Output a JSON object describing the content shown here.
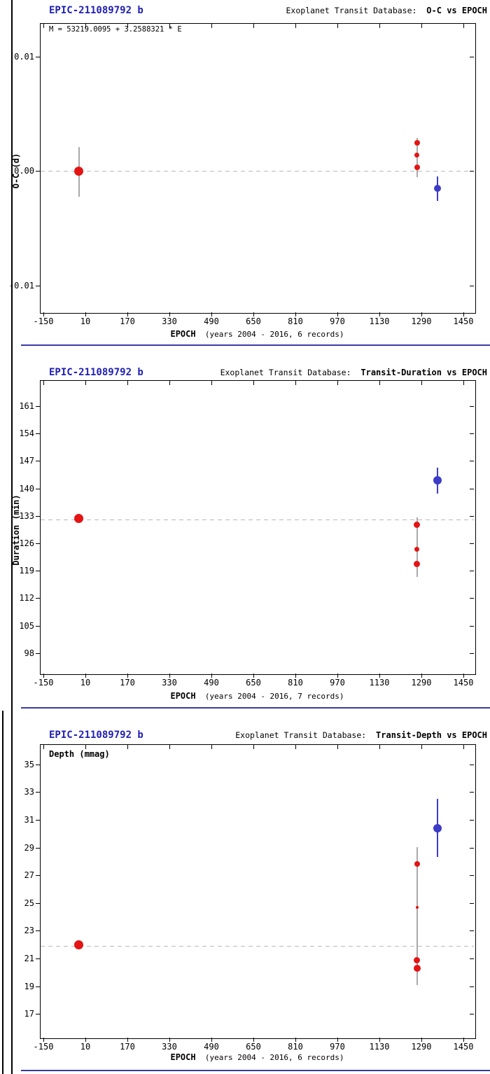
{
  "colors": {
    "red": "#e41414",
    "blue": "#3c3cc8",
    "gray": "#a9a9a9",
    "dashed": "#b9b9b9",
    "separator": "#3939a8",
    "title_blue": "#2020b2",
    "axis": "#000000"
  },
  "chart_data": [
    {
      "type": "scatter",
      "title": "EPIC-211089792 b",
      "header_prefix": "Exoplanet Transit Database:  ",
      "header_bold": "O-C vs EPOCH",
      "legend": "M = 53219.0095 + 3.2588321 * E",
      "ylabel": "O-C (d)",
      "xlabel": "EPOCH",
      "xlabel_note": "(years 2004 - 2016, 6 records)",
      "x_ticks": [
        -150,
        10,
        170,
        330,
        490,
        650,
        810,
        970,
        1130,
        1290,
        1450
      ],
      "y_ticks": [
        {
          "v": 0.01,
          "label": "0.01"
        },
        {
          "v": 0.0,
          "label": "0.00"
        },
        {
          "v": -0.01,
          "label": "-0.01"
        }
      ],
      "xlim": [
        -163,
        1493
      ],
      "ylim": [
        -0.01235,
        0.01294
      ],
      "grid": false,
      "dashed_line_y": 0.0,
      "legend_position": "top-left",
      "error_bars": [
        {
          "x": -14,
          "y_from": 0.0021,
          "y_to": -0.00225,
          "color": "gray"
        },
        {
          "x": 1273,
          "y_from": 0.0029,
          "y_to": -0.00055,
          "color": "gray"
        },
        {
          "x": 1352,
          "y_from": -0.0005,
          "y_to": -0.0026,
          "color": "blue"
        }
      ],
      "points": [
        {
          "x": -14,
          "y": 0.0,
          "color": "red",
          "size": 13
        },
        {
          "x": 1273,
          "y": 0.00245,
          "color": "red",
          "size": 8
        },
        {
          "x": 1273,
          "y": 0.0014,
          "color": "red",
          "size": 7
        },
        {
          "x": 1273,
          "y": 0.0003,
          "color": "red",
          "size": 8
        },
        {
          "x": 1352,
          "y": -0.0015,
          "color": "blue",
          "size": 10
        }
      ]
    },
    {
      "type": "scatter",
      "title": "EPIC-211089792 b",
      "header_prefix": "Exoplanet Transit Database:  ",
      "header_bold": "Transit-Duration vs EPOCH",
      "ylabel": "Duration (min)",
      "xlabel": "EPOCH",
      "xlabel_note": "(years 2004 - 2016, 7 records)",
      "x_ticks": [
        -150,
        10,
        170,
        330,
        490,
        650,
        810,
        970,
        1130,
        1290,
        1450
      ],
      "y_ticks": [
        {
          "v": 161,
          "label": "161"
        },
        {
          "v": 154,
          "label": "154"
        },
        {
          "v": 147,
          "label": "147"
        },
        {
          "v": 140,
          "label": "140"
        },
        {
          "v": 133,
          "label": "133"
        },
        {
          "v": 126,
          "label": "126"
        },
        {
          "v": 119,
          "label": "119"
        },
        {
          "v": 112,
          "label": "112"
        },
        {
          "v": 105,
          "label": "105"
        },
        {
          "v": 98,
          "label": "98"
        }
      ],
      "xlim": [
        -163,
        1493
      ],
      "ylim": [
        92.8,
        167.6
      ],
      "grid": false,
      "dashed_line_y": 132.1,
      "error_bars": [
        {
          "x": 1273,
          "y_from": 132.6,
          "y_to": 117.5,
          "color": "gray"
        },
        {
          "x": 1352,
          "y_from": 145.3,
          "y_to": 138.7,
          "color": "blue"
        }
      ],
      "points": [
        {
          "x": -14,
          "y": 132.3,
          "color": "red",
          "size": 13
        },
        {
          "x": 1273,
          "y": 130.8,
          "color": "red",
          "size": 9
        },
        {
          "x": 1273,
          "y": 124.4,
          "color": "red",
          "size": 7
        },
        {
          "x": 1273,
          "y": 120.8,
          "color": "red",
          "size": 9
        },
        {
          "x": 1352,
          "y": 142.0,
          "color": "blue",
          "size": 12
        }
      ]
    },
    {
      "type": "scatter",
      "title": "EPIC-211089792 b",
      "header_prefix": "Exoplanet Transit Database:  ",
      "header_bold": "Transit-Depth vs EPOCH",
      "ylabel": "Depth (mmag)",
      "xlabel": "EPOCH",
      "xlabel_note": "(years 2004 - 2016, 6 records)",
      "x_ticks": [
        -150,
        10,
        170,
        330,
        490,
        650,
        810,
        970,
        1130,
        1290,
        1450
      ],
      "y_ticks": [
        {
          "v": 35,
          "label": "35"
        },
        {
          "v": 33,
          "label": "33"
        },
        {
          "v": 31,
          "label": "31"
        },
        {
          "v": 29,
          "label": "29"
        },
        {
          "v": 27,
          "label": "27"
        },
        {
          "v": 25,
          "label": "25"
        },
        {
          "v": 23,
          "label": "23"
        },
        {
          "v": 21,
          "label": "21"
        },
        {
          "v": 19,
          "label": "19"
        },
        {
          "v": 17,
          "label": "17"
        }
      ],
      "xlim": [
        -163,
        1493
      ],
      "ylim": [
        15.3,
        36.45
      ],
      "grid": false,
      "dashed_line_y": 21.9,
      "error_bars": [
        {
          "x": 1273,
          "y_from": 29.05,
          "y_to": 19.1,
          "color": "gray"
        },
        {
          "x": 1352,
          "y_from": 32.5,
          "y_to": 28.3,
          "color": "blue"
        }
      ],
      "points": [
        {
          "x": -14,
          "y": 22.0,
          "color": "red",
          "size": 13
        },
        {
          "x": 1273,
          "y": 27.8,
          "color": "red",
          "size": 8
        },
        {
          "x": 1273,
          "y": 24.7,
          "color": "red",
          "size": 4
        },
        {
          "x": 1273,
          "y": 20.9,
          "color": "red",
          "size": 9
        },
        {
          "x": 1273,
          "y": 20.3,
          "color": "red",
          "size": 10
        },
        {
          "x": 1352,
          "y": 30.4,
          "color": "blue",
          "size": 12
        }
      ]
    }
  ]
}
